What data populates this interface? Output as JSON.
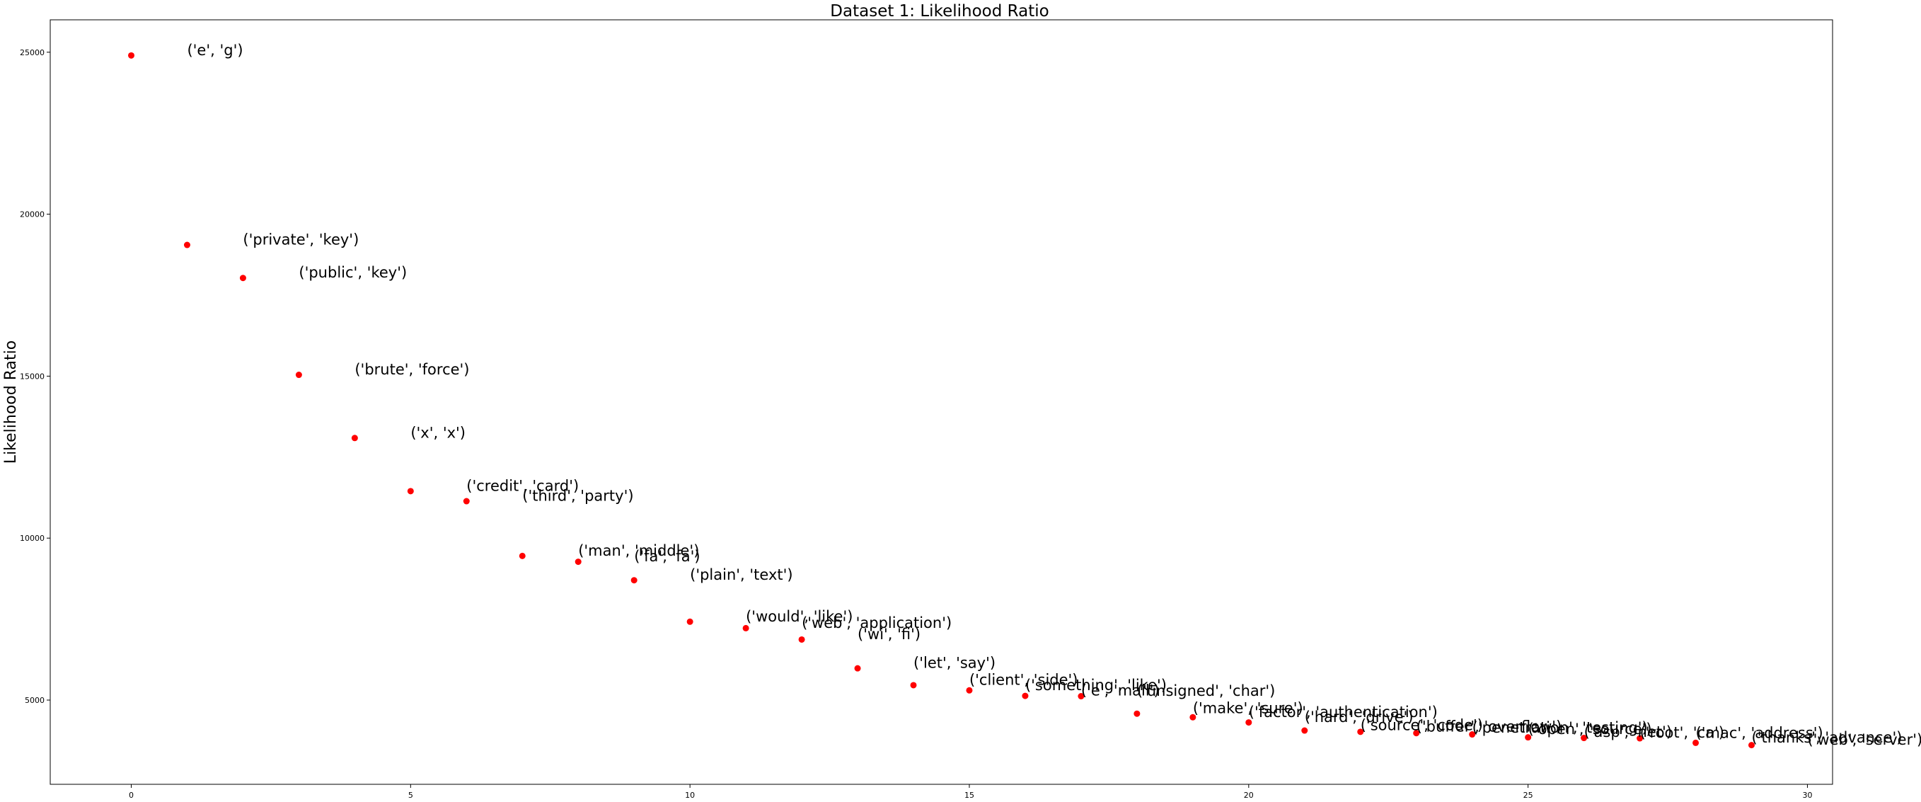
{
  "chart_data": {
    "type": "scatter",
    "title": "Dataset 1: Likelihood Ratio",
    "xlabel": "",
    "ylabel": "Likelihood Ratio",
    "xlim": [
      -1.45,
      30.45
    ],
    "ylim": [
      2400,
      26000
    ],
    "xticks": [
      0,
      5,
      10,
      15,
      20,
      25,
      30
    ],
    "yticks": [
      5000,
      10000,
      15000,
      20000,
      25000
    ],
    "grid": false,
    "marker_color": "#ff0000",
    "points": [
      {
        "x": 0,
        "y": 24900,
        "label": "('e', 'g')"
      },
      {
        "x": 1,
        "y": 19050,
        "label": "('private', 'key')"
      },
      {
        "x": 2,
        "y": 18030,
        "label": "('public', 'key')"
      },
      {
        "x": 3,
        "y": 15040,
        "label": "('brute', 'force')"
      },
      {
        "x": 4,
        "y": 13090,
        "label": "('x', 'x')"
      },
      {
        "x": 5,
        "y": 11450,
        "label": "('credit', 'card')"
      },
      {
        "x": 6,
        "y": 11140,
        "label": "('third', 'party')"
      },
      {
        "x": 7,
        "y": 9450,
        "label": "('man', 'middle')"
      },
      {
        "x": 8,
        "y": 9270,
        "label": "('fa', 'fa')"
      },
      {
        "x": 9,
        "y": 8700,
        "label": "('plain', 'text')"
      },
      {
        "x": 10,
        "y": 7420,
        "label": "('would', 'like')"
      },
      {
        "x": 11,
        "y": 7220,
        "label": "('web', 'application')"
      },
      {
        "x": 12,
        "y": 6870,
        "label": "('wi', 'fi')"
      },
      {
        "x": 13,
        "y": 5980,
        "label": "('let', 'say')"
      },
      {
        "x": 14,
        "y": 5460,
        "label": "('client', 'side')"
      },
      {
        "x": 15,
        "y": 5300,
        "label": "('something', 'like')"
      },
      {
        "x": 16,
        "y": 5130,
        "label": "('e', 'mail')"
      },
      {
        "x": 17,
        "y": 5120,
        "label": "('unsigned', 'char')"
      },
      {
        "x": 18,
        "y": 4580,
        "label": "('make', 'sure')"
      },
      {
        "x": 19,
        "y": 4470,
        "label": "('factor', 'authentication')"
      },
      {
        "x": 20,
        "y": 4310,
        "label": "('hard', 'drive')"
      },
      {
        "x": 21,
        "y": 4060,
        "label": "('source', 'code')"
      },
      {
        "x": 22,
        "y": 4020,
        "label": "('buffer', 'overflow')"
      },
      {
        "x": 23,
        "y": 3980,
        "label": "('penetration', 'testing')"
      },
      {
        "x": 24,
        "y": 3940,
        "label": "('open', 'source')"
      },
      {
        "x": 25,
        "y": 3850,
        "label": "('asp', 'net')"
      },
      {
        "x": 26,
        "y": 3830,
        "label": "('root', 'ca')"
      },
      {
        "x": 27,
        "y": 3820,
        "label": "('mac', 'address')"
      },
      {
        "x": 28,
        "y": 3680,
        "label": "('thanks', 'advance')"
      },
      {
        "x": 29,
        "y": 3610,
        "label": "('web', 'server')"
      }
    ]
  }
}
